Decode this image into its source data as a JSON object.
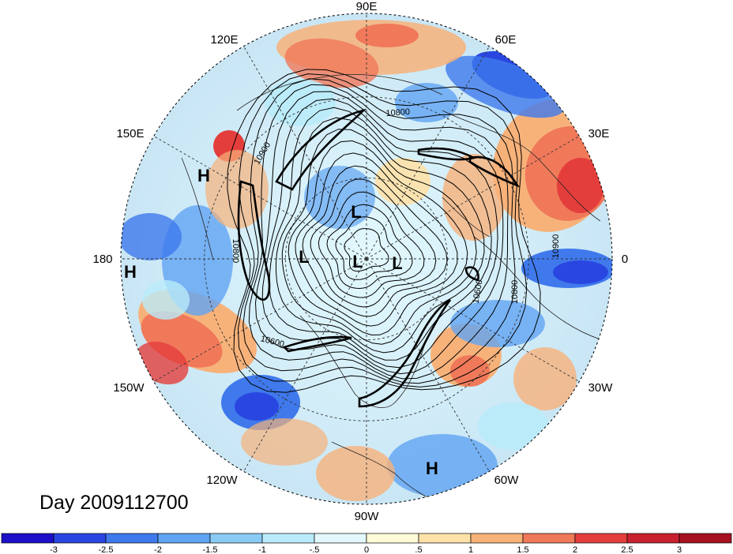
{
  "title": "Day 2009112700",
  "longitude_labels": [
    "90E",
    "60E",
    "30E",
    "0",
    "30W",
    "60W",
    "90W",
    "120W",
    "150W",
    "180",
    "150E",
    "120E"
  ],
  "pressure_centers": [
    {
      "type": "H",
      "label": "H"
    },
    {
      "type": "H",
      "label": "H"
    },
    {
      "type": "H",
      "label": "H"
    },
    {
      "type": "L",
      "label": "L"
    },
    {
      "type": "L",
      "label": "L"
    },
    {
      "type": "L",
      "label": "L"
    },
    {
      "type": "L",
      "label": "L"
    }
  ],
  "contour_labels": [
    "10800",
    "10900",
    "10800",
    "10600",
    "10800",
    "10900",
    "10600"
  ],
  "colorbar": {
    "ticks": [
      "-3",
      "-2.5",
      "-2",
      "-1.5",
      "-1",
      "-.5",
      "0",
      ".5",
      "1",
      "1.5",
      "2",
      "2.5",
      "3"
    ],
    "colors": [
      "#1d10c8",
      "#2a46e0",
      "#3f79ec",
      "#60a4f2",
      "#8acbf6",
      "#b9ebfa",
      "#e2f8fd",
      "#fffbd9",
      "#fde1a8",
      "#f7b27a",
      "#f0795a",
      "#e43e3c",
      "#c8202e",
      "#a6121f"
    ]
  },
  "colors": {
    "background": "#ffffff",
    "map_base": "#d8ecf6"
  }
}
